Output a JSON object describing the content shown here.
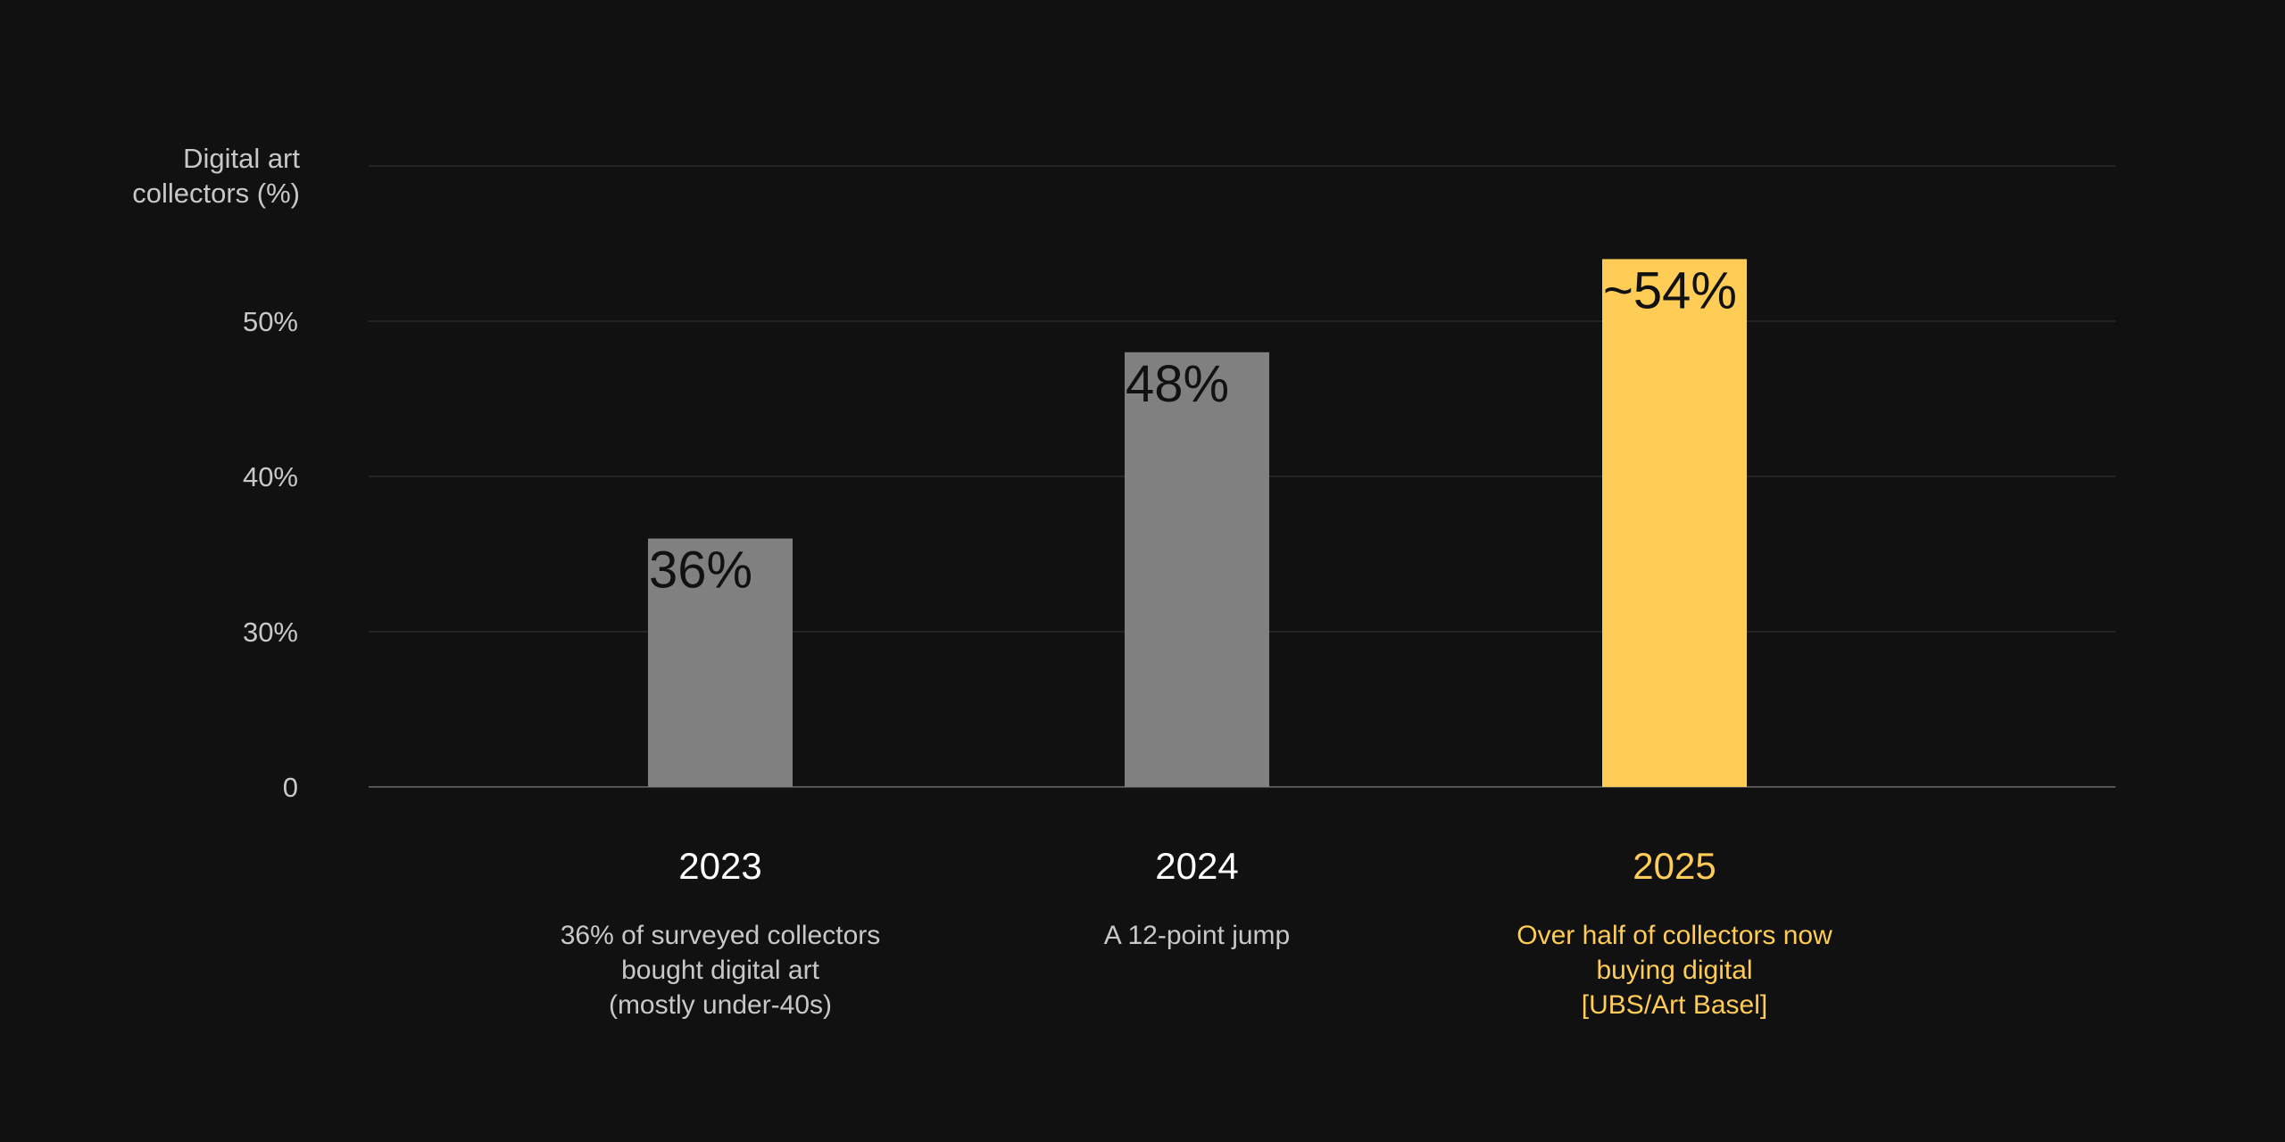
{
  "chart_data": {
    "type": "bar",
    "title": "",
    "xlabel": "",
    "ylabel_lines": [
      "Digital art",
      "collectors (%)"
    ],
    "y_ticks": [
      {
        "value": 0,
        "label": "0"
      },
      {
        "value": 30,
        "label": "30%"
      },
      {
        "value": 40,
        "label": "40%"
      },
      {
        "value": 50,
        "label": "50%"
      }
    ],
    "categories": [
      "2023",
      "2024",
      "2025"
    ],
    "values": [
      36,
      48,
      54
    ],
    "data_labels": [
      "36%",
      "48%",
      "~54%"
    ],
    "notes": [
      [
        "36% of surveyed collectors",
        "bought digital art",
        "(mostly under-40s)"
      ],
      [
        "A 12-point jump"
      ],
      [
        "Over half of collectors now",
        "buying digital",
        "[UBS/Art Basel]"
      ]
    ],
    "bar_colors": [
      "#808080",
      "#808080",
      "#ffcc55"
    ],
    "category_label_colors": [
      "#ffffff",
      "#ffffff",
      "#ffcc55"
    ],
    "note_colors": [
      "#c8c8c8",
      "#c8c8c8",
      "#ffcc55"
    ],
    "background_color": "#111111",
    "grid": true,
    "legend": "none"
  }
}
